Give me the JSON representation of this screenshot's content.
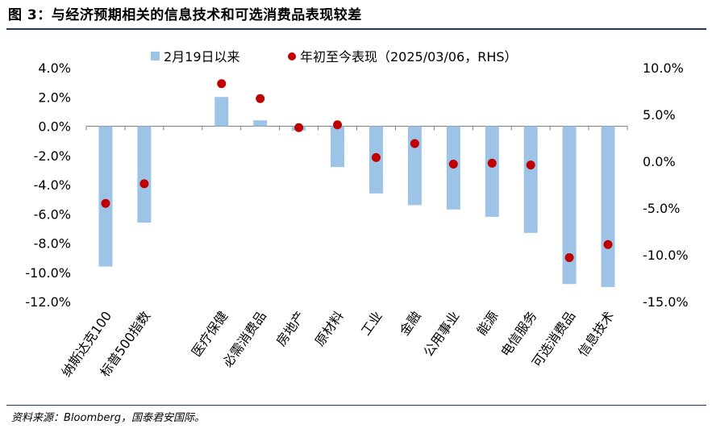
{
  "title": "图 3：与经济预期相关的信息技术和可选消费品表现较差",
  "source": "资料来源：Bloomberg，国泰君安国际。",
  "colors": {
    "bar": "#9dc3e6",
    "dot": "#c00000",
    "axis": "#7f7f7f",
    "rule": "#1f3864"
  },
  "chart_data": {
    "type": "bar",
    "title": "",
    "categories": [
      "纳斯达克100",
      "标普500指数",
      "",
      "医疗保健",
      "必需消费品",
      "房地产",
      "原材料",
      "工业",
      "金融",
      "公用事业",
      "能源",
      "电信服务",
      "可选消费品",
      "信息技术"
    ],
    "series": [
      {
        "name": "2月19日以来",
        "type": "bar",
        "axis": "left",
        "values": [
          -9.6,
          -6.6,
          null,
          2.0,
          0.4,
          -0.3,
          -2.8,
          -4.6,
          -5.4,
          -5.7,
          -6.2,
          -7.3,
          -10.8,
          -11.0
        ]
      },
      {
        "name": "年初至今表现（2025/03/06，RHS）",
        "type": "scatter",
        "axis": "right",
        "values": [
          -4.5,
          -2.4,
          null,
          8.3,
          6.7,
          3.6,
          3.9,
          0.4,
          1.9,
          -0.3,
          -0.2,
          -0.4,
          -10.3,
          -8.9
        ]
      }
    ],
    "left_axis": {
      "ylim": [
        -12,
        4
      ],
      "ticks": [
        4.0,
        2.0,
        0.0,
        -2.0,
        -4.0,
        -6.0,
        -8.0,
        -10.0,
        -12.0
      ],
      "tick_labels": [
        "4.0%",
        "2.0%",
        "0.0%",
        "-2.0%",
        "-4.0%",
        "-6.0%",
        "-8.0%",
        "-10.0%",
        "-12.0%"
      ]
    },
    "right_axis": {
      "ylim": [
        -15,
        10
      ],
      "ticks": [
        10.0,
        5.0,
        0.0,
        -5.0,
        -10.0,
        -15.0
      ],
      "tick_labels": [
        "10.0%",
        "5.0%",
        "0.0%",
        "-5.0%",
        "-10.0%",
        "-15.0%"
      ]
    },
    "legend": {
      "position": "top-center",
      "bar_label": "2月19日以来",
      "dot_label": "年初至今表现（2025/03/06，RHS）"
    },
    "grid": false
  }
}
